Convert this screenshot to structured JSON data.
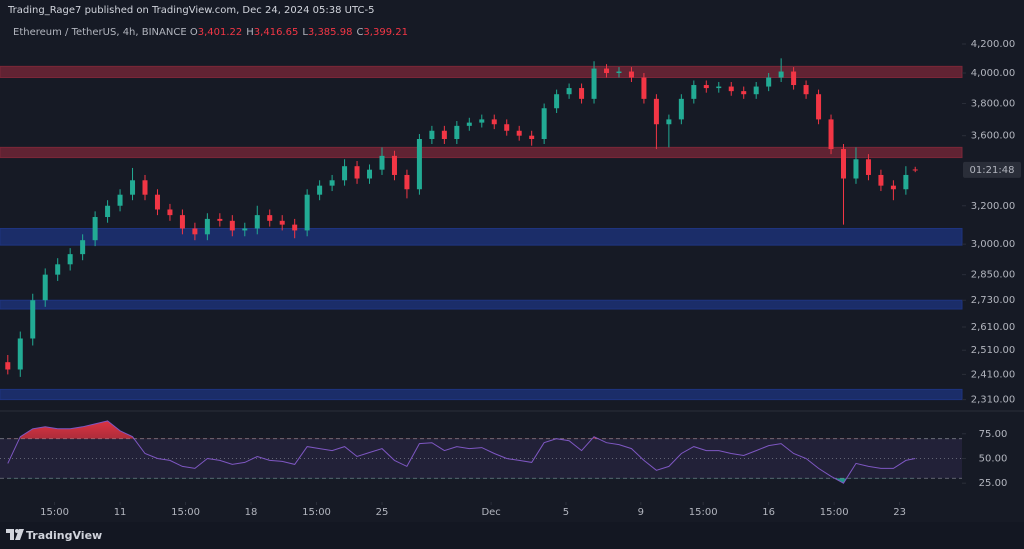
{
  "header": {
    "text": "Trading_Rage7 published on TradingView.com, Dec 24, 2024 05:38 UTC-5"
  },
  "footer": {
    "brand": "TradingView"
  },
  "chart_data": [
    {
      "type": "candlestick",
      "title": "Ethereum / TetherUS, 4h, BINANCE",
      "ohlc_prefixes": [
        "O",
        "H",
        "L",
        "C"
      ],
      "ohlc_labels": [
        "3,401.22",
        "3,416.65",
        "3,385.98",
        "3,399.21"
      ],
      "countdown": "01:21:48",
      "x": [
        0,
        4,
        8,
        12,
        16,
        20,
        24,
        28,
        32,
        36,
        40,
        44,
        48,
        52,
        56,
        60,
        64,
        68,
        72,
        76,
        80,
        84,
        88,
        92,
        96,
        100,
        104,
        108,
        112,
        116,
        120,
        124,
        128,
        132,
        136,
        140,
        144,
        148,
        152,
        156,
        160,
        164,
        168,
        172,
        176,
        180,
        184,
        188,
        192,
        196,
        200,
        204,
        208,
        212,
        216,
        220,
        224,
        228,
        232,
        236,
        240,
        244,
        248,
        252,
        256,
        260,
        264,
        268,
        272,
        276,
        280,
        284,
        288,
        291
      ],
      "open": [
        2460,
        2430,
        2560,
        2730,
        2850,
        2900,
        2950,
        3020,
        3140,
        3200,
        3260,
        3340,
        3260,
        3180,
        3150,
        3080,
        3050,
        3130,
        3120,
        3070,
        3080,
        3150,
        3120,
        3100,
        3070,
        3260,
        3310,
        3340,
        3420,
        3350,
        3400,
        3480,
        3370,
        3290,
        3580,
        3630,
        3580,
        3660,
        3680,
        3700,
        3670,
        3630,
        3600,
        3580,
        3770,
        3860,
        3900,
        3830,
        4030,
        4000,
        4010,
        3970,
        3830,
        3670,
        3700,
        3830,
        3920,
        3900,
        3910,
        3880,
        3860,
        3910,
        3970,
        4010,
        3920,
        3860,
        3700,
        3520,
        3350,
        3460,
        3370,
        3310,
        3290,
        3401.22
      ],
      "high": [
        2490,
        2590,
        2760,
        2880,
        2930,
        2980,
        3050,
        3170,
        3230,
        3290,
        3410,
        3370,
        3290,
        3210,
        3180,
        3110,
        3160,
        3160,
        3150,
        3110,
        3200,
        3180,
        3150,
        3130,
        3290,
        3340,
        3370,
        3460,
        3450,
        3430,
        3530,
        3510,
        3400,
        3610,
        3660,
        3660,
        3690,
        3710,
        3730,
        3730,
        3700,
        3660,
        3630,
        3800,
        3890,
        3930,
        3930,
        4080,
        4060,
        4040,
        4040,
        4000,
        3860,
        3730,
        3860,
        3950,
        3950,
        3940,
        3940,
        3910,
        3940,
        4000,
        4100,
        4040,
        3950,
        3890,
        3730,
        3550,
        3530,
        3490,
        3400,
        3340,
        3420,
        3416.65
      ],
      "low": [
        2410,
        2400,
        2530,
        2700,
        2820,
        2870,
        2920,
        2990,
        3110,
        3170,
        3230,
        3230,
        3150,
        3120,
        3050,
        3020,
        3020,
        3090,
        3040,
        3040,
        3050,
        3090,
        3070,
        3030,
        3040,
        3230,
        3280,
        3310,
        3320,
        3320,
        3370,
        3340,
        3240,
        3260,
        3550,
        3550,
        3550,
        3630,
        3650,
        3640,
        3600,
        3570,
        3540,
        3550,
        3740,
        3830,
        3800,
        3800,
        3970,
        3970,
        3940,
        3800,
        3520,
        3530,
        3670,
        3800,
        3870,
        3870,
        3850,
        3830,
        3830,
        3880,
        3940,
        3890,
        3830,
        3670,
        3490,
        3100,
        3320,
        3340,
        3280,
        3230,
        3260,
        3385.98
      ],
      "close": [
        2430,
        2560,
        2730,
        2850,
        2900,
        2950,
        3020,
        3140,
        3200,
        3260,
        3340,
        3260,
        3180,
        3150,
        3080,
        3050,
        3130,
        3120,
        3070,
        3080,
        3150,
        3120,
        3100,
        3070,
        3260,
        3310,
        3340,
        3420,
        3350,
        3400,
        3480,
        3370,
        3290,
        3580,
        3630,
        3580,
        3660,
        3680,
        3700,
        3670,
        3630,
        3600,
        3580,
        3770,
        3860,
        3900,
        3830,
        4030,
        4000,
        4010,
        3970,
        3830,
        3670,
        3700,
        3830,
        3920,
        3900,
        3910,
        3880,
        3860,
        3910,
        3970,
        4010,
        3920,
        3860,
        3700,
        3520,
        3350,
        3460,
        3370,
        3310,
        3290,
        3370,
        3399.21
      ],
      "up_color": "#22ab94",
      "down_color": "#f23645",
      "log_scale": true,
      "xlim": [
        -2.5,
        306
      ],
      "ylim": [
        2270,
        4300
      ],
      "yticks": [
        {
          "value": 4200,
          "label": "4,200.00"
        },
        {
          "value": 4000,
          "label": "4,000.00"
        },
        {
          "value": 3800,
          "label": "3,800.00"
        },
        {
          "value": 3600,
          "label": "3,600.00"
        },
        {
          "value": 3200,
          "label": "3,200.00"
        },
        {
          "value": 3000,
          "label": "3,000.00"
        },
        {
          "value": 2850,
          "label": "2,850.00"
        },
        {
          "value": 2730,
          "label": "2,730.00"
        },
        {
          "value": 2610,
          "label": "2,610.00"
        },
        {
          "value": 2510,
          "label": "2,510.00"
        },
        {
          "value": 2410,
          "label": "2,410.00"
        },
        {
          "value": 2310,
          "label": "2,310.00"
        }
      ],
      "zones": [
        {
          "low": 3970,
          "high": 4045,
          "color": "#7b2738"
        },
        {
          "low": 3470,
          "high": 3530,
          "color": "#7b2738"
        },
        {
          "low": 2995,
          "high": 3080,
          "color": "#1e3480"
        },
        {
          "low": 2690,
          "high": 2730,
          "color": "#1e3480"
        },
        {
          "low": 2310,
          "high": 2350,
          "color": "#1e3480"
        }
      ]
    },
    {
      "type": "line",
      "color": "#7e57c2",
      "x": [
        0,
        4,
        8,
        12,
        16,
        20,
        24,
        28,
        32,
        36,
        40,
        44,
        48,
        52,
        56,
        60,
        64,
        68,
        72,
        76,
        80,
        84,
        88,
        92,
        96,
        100,
        104,
        108,
        112,
        116,
        120,
        124,
        128,
        132,
        136,
        140,
        144,
        148,
        152,
        156,
        160,
        164,
        168,
        172,
        176,
        180,
        184,
        188,
        192,
        196,
        200,
        204,
        208,
        212,
        216,
        220,
        224,
        228,
        232,
        236,
        240,
        244,
        248,
        252,
        256,
        260,
        264,
        268,
        272,
        276,
        280,
        284,
        288,
        291
      ],
      "values": [
        45,
        72,
        80,
        82,
        80,
        80,
        82,
        85,
        88,
        78,
        72,
        55,
        50,
        48,
        42,
        40,
        50,
        48,
        44,
        46,
        52,
        48,
        47,
        44,
        62,
        60,
        58,
        62,
        52,
        56,
        60,
        48,
        42,
        65,
        66,
        58,
        62,
        60,
        61,
        55,
        50,
        48,
        46,
        66,
        70,
        68,
        58,
        72,
        66,
        64,
        60,
        48,
        38,
        42,
        55,
        62,
        58,
        58,
        55,
        53,
        58,
        63,
        65,
        55,
        50,
        40,
        32,
        25,
        45,
        42,
        40,
        40,
        48,
        50
      ],
      "bands": [
        30,
        70
      ],
      "midline": 50,
      "xlim": [
        -2.5,
        306
      ],
      "ylim": [
        8,
        97
      ],
      "yticks": [
        {
          "value": 75,
          "label": "75.00"
        },
        {
          "value": 50,
          "label": "50.00"
        },
        {
          "value": 25,
          "label": "25.00"
        }
      ],
      "xticks": [
        {
          "value": 15,
          "label": "15:00"
        },
        {
          "value": 36,
          "label": "11"
        },
        {
          "value": 57,
          "label": "15:00"
        },
        {
          "value": 78,
          "label": "18"
        },
        {
          "value": 99,
          "label": "15:00"
        },
        {
          "value": 120,
          "label": "25"
        },
        {
          "value": 155,
          "label": "Dec"
        },
        {
          "value": 179,
          "label": "5"
        },
        {
          "value": 203,
          "label": "9"
        },
        {
          "value": 223,
          "label": "15:00"
        },
        {
          "value": 244,
          "label": "16"
        },
        {
          "value": 265,
          "label": "15:00"
        },
        {
          "value": 286,
          "label": "23"
        }
      ]
    }
  ]
}
